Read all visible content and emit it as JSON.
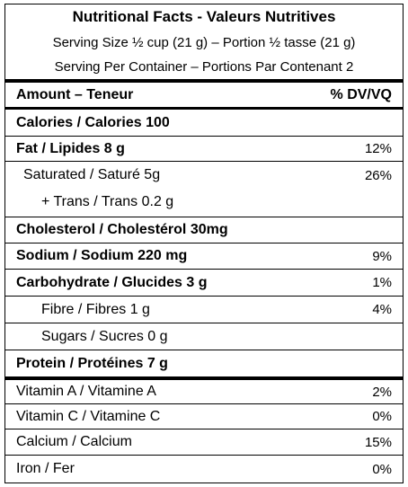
{
  "header": {
    "title": "Nutritional Facts - Valeurs Nutritives",
    "serving_size": "Serving Size ½ cup (21 g) – Portion ½ tasse (21 g)",
    "servings": "Serving Per Container – Portions Par Contenant 2"
  },
  "table": {
    "columns": [
      "Amount – Teneur",
      "% DV/VQ"
    ],
    "rows": [
      [
        "Calories / Calories 100"
      ],
      [
        "Fat / Lipides 8 g",
        "12%"
      ],
      [
        "Saturated / Saturé 5g",
        "26%"
      ],
      [
        "+ Trans / Trans 0.2 g"
      ],
      [
        "Cholesterol / Cholestérol 30mg"
      ],
      [
        "Sodium / Sodium 220 mg",
        "9%"
      ],
      [
        "Carbohydrate / Glucides 3 g",
        "1%"
      ],
      [
        "Fibre / Fibres 1 g",
        "4%"
      ],
      [
        "Sugars / Sucres 0 g"
      ],
      [
        "Protein / Protéines 7 g"
      ],
      [
        "Vitamin A / Vitamine A",
        "2%"
      ],
      [
        "Vitamin C / Vitamine C",
        "0%"
      ],
      [
        "Calcium / Calcium",
        "15%"
      ],
      [
        "Iron / Fer",
        "0%"
      ]
    ]
  }
}
